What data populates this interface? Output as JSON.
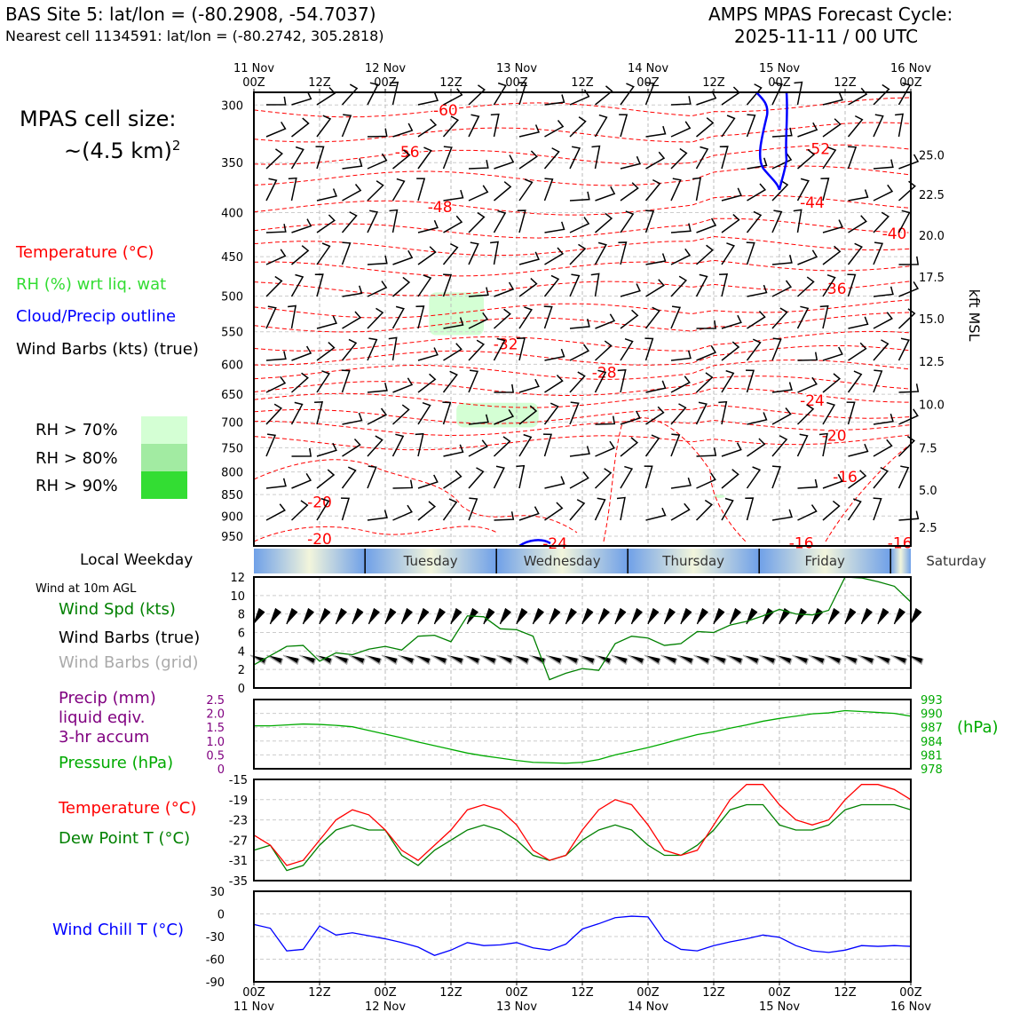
{
  "header": {
    "site_line": "BAS Site 5: lat/lon = (-80.2908, -54.7037)",
    "cell_line": "Nearest cell 1134591: lat/lon = (-80.2742, 305.2818)",
    "product_line": "AMPS MPAS Forecast Cycle:",
    "cycle_line": "2025-11-11 / 00 UTC"
  },
  "cell_size": {
    "label": "MPAS cell size:",
    "value": "~(4.5 km)",
    "exponent": "2"
  },
  "legend": {
    "temperature": "Temperature (°C)",
    "rh": "RH (%) wrt liq. wat",
    "cloud": "Cloud/Precip outline",
    "wind_barbs": "Wind Barbs (kts) (true)",
    "rh70": "RH > 70%",
    "rh80": "RH > 80%",
    "rh90": "RH > 90%"
  },
  "colors": {
    "temperature": "#ff0000",
    "dewpoint": "#008000",
    "rh": "#33dd33",
    "cloud": "#0000ff",
    "precip": "#800080",
    "pressure": "#00aa00",
    "windchill": "#0000ff",
    "barbs_grid": "#aaaaaa",
    "rh70": "#d4ffd4",
    "rh80": "#a2eba2",
    "rh90": "#33dd33"
  },
  "weekday": {
    "label": "Local Weekday",
    "days": [
      "Tuesday",
      "Wednesday",
      "Thursday",
      "Friday",
      "Saturday"
    ]
  },
  "surface_legend": {
    "wind_title": "Wind at 10m AGL",
    "wind_speed": "Wind Spd (kts)",
    "wind_barbs": "Wind Barbs (true)",
    "wind_barbs_grid": "Wind Barbs (grid)",
    "precip1": "Precip (mm)",
    "precip2": "liquid eqiv.",
    "precip3": "3-hr accum",
    "pressure": "Pressure (hPa)",
    "temperature": "Temperature (°C)",
    "dewpoint": "Dew Point T (°C)",
    "windchill": "Wind Chill T (°C)",
    "hpa_unit": "(hPa)"
  },
  "time_axis": {
    "top_labels": [
      [
        "11 Nov",
        "00Z"
      ],
      [
        "",
        "12Z"
      ],
      [
        "12 Nov",
        "00Z"
      ],
      [
        "",
        "12Z"
      ],
      [
        "13 Nov",
        "00Z"
      ],
      [
        "",
        "12Z"
      ],
      [
        "14 Nov",
        "00Z"
      ],
      [
        "",
        "12Z"
      ],
      [
        "15 Nov",
        "00Z"
      ],
      [
        "",
        "12Z"
      ],
      [
        "16 Nov",
        "00Z"
      ]
    ],
    "bottom_labels": [
      [
        "00Z",
        "11 Nov"
      ],
      [
        "12Z",
        ""
      ],
      [
        "00Z",
        "12 Nov"
      ],
      [
        "12Z",
        ""
      ],
      [
        "00Z",
        "13 Nov"
      ],
      [
        "12Z",
        ""
      ],
      [
        "00Z",
        "14 Nov"
      ],
      [
        "12Z",
        ""
      ],
      [
        "00Z",
        "15 Nov"
      ],
      [
        "12Z",
        ""
      ],
      [
        "00Z",
        "16 Nov"
      ]
    ]
  },
  "chart_data": [
    {
      "type": "heatmap",
      "id": "cross_section",
      "x_unit": "forecast hour from 2025-11-11 00Z",
      "xlim": [
        0,
        120
      ],
      "ylim": [
        975,
        290
      ],
      "ylabel_right": "kft MSL",
      "pressure_ticks": [
        300,
        350,
        400,
        450,
        500,
        550,
        600,
        650,
        700,
        750,
        800,
        850,
        900,
        950
      ],
      "height_ticks": [
        {
          "p": 343,
          "label": "25.0"
        },
        {
          "p": 381,
          "label": "22.5"
        },
        {
          "p": 425,
          "label": "20.0"
        },
        {
          "p": 475,
          "label": "17.5"
        },
        {
          "p": 531,
          "label": "15.0"
        },
        {
          "p": 595,
          "label": "12.5"
        },
        {
          "p": 668,
          "label": "10.0"
        },
        {
          "p": 750,
          "label": "7.5"
        },
        {
          "p": 840,
          "label": "5.0"
        },
        {
          "p": 928,
          "label": "2.5"
        }
      ],
      "temperature_contour_labels": [
        {
          "label": "-60",
          "x": 35,
          "p": 304
        },
        {
          "label": "-56",
          "x": 28,
          "p": 340
        },
        {
          "label": "-52",
          "x": 103,
          "p": 337
        },
        {
          "label": "-48",
          "x": 34,
          "p": 394
        },
        {
          "label": "-44",
          "x": 102,
          "p": 389
        },
        {
          "label": "-40",
          "x": 117,
          "p": 423
        },
        {
          "label": "-36",
          "x": 106,
          "p": 490
        },
        {
          "label": "-32",
          "x": 46,
          "p": 568
        },
        {
          "label": "-28",
          "x": 64,
          "p": 613
        },
        {
          "label": "-24",
          "x": 102,
          "p": 661
        },
        {
          "label": "-20",
          "x": 106,
          "p": 726
        },
        {
          "label": "-20",
          "x": 12,
          "p": 867
        },
        {
          "label": "-20",
          "x": 12,
          "p": 957
        },
        {
          "label": "-24",
          "x": 55,
          "p": 968
        },
        {
          "label": "-16",
          "x": 108,
          "p": 810
        },
        {
          "label": "-16",
          "x": 100,
          "p": 967
        },
        {
          "label": "-16",
          "x": 118,
          "p": 967
        }
      ],
      "rh_gt70_regions": [
        {
          "x": [
            32,
            42
          ],
          "p": [
            495,
            555
          ]
        },
        {
          "x": [
            37,
            52
          ],
          "p": [
            665,
            710
          ]
        },
        {
          "x": [
            84,
            86
          ],
          "p": [
            850,
            858
          ]
        }
      ]
    },
    {
      "type": "line",
      "id": "wind_speed_10m",
      "x": [
        0,
        3,
        6,
        9,
        12,
        15,
        18,
        21,
        24,
        27,
        30,
        33,
        36,
        39,
        42,
        45,
        48,
        51,
        54,
        57,
        60,
        63,
        66,
        69,
        72,
        75,
        78,
        81,
        84,
        87,
        90,
        93,
        96,
        99,
        102,
        105,
        108,
        111,
        114,
        117,
        120
      ],
      "series": [
        {
          "values": [
            2.5,
            3.5,
            4.5,
            4.6,
            2.9,
            3.8,
            3.6,
            4.2,
            4.5,
            4.1,
            5.6,
            5.7,
            5.0,
            7.8,
            7.7,
            6.4,
            6.3,
            5.6,
            0.9,
            1.6,
            2.1,
            1.9,
            4.8,
            5.6,
            5.4,
            4.6,
            4.8,
            6.1,
            6.0,
            6.8,
            7.2,
            7.8,
            8.5,
            8.0,
            7.9,
            8.4,
            12.0,
            11.9,
            11.5,
            11.0,
            9.3
          ]
        }
      ],
      "ylabel": "Wind Spd (kts)",
      "ylim": [
        0,
        12
      ],
      "yticks": [
        0,
        2,
        4,
        6,
        8,
        10,
        12
      ]
    },
    {
      "type": "line",
      "id": "pressure_precip",
      "x": [
        0,
        3,
        6,
        9,
        12,
        15,
        18,
        21,
        24,
        27,
        30,
        33,
        36,
        39,
        42,
        45,
        48,
        51,
        54,
        57,
        60,
        63,
        66,
        69,
        72,
        75,
        78,
        81,
        84,
        87,
        90,
        93,
        96,
        99,
        102,
        105,
        108,
        111,
        114,
        117,
        120
      ],
      "series": [
        {
          "name": "Pressure (hPa)",
          "values": [
            987.3,
            987.3,
            987.5,
            987.7,
            987.6,
            987.4,
            987.1,
            986.3,
            985.5,
            984.7,
            983.8,
            983.0,
            982.2,
            981.4,
            980.8,
            980.3,
            979.8,
            979.4,
            979.3,
            979.2,
            979.4,
            980.0,
            981.0,
            981.8,
            982.6,
            983.5,
            984.5,
            985.4,
            986.0,
            986.8,
            987.5,
            988.3,
            988.9,
            989.4,
            989.9,
            990.1,
            990.6,
            990.4,
            990.2,
            990.0,
            989.4
          ]
        }
      ],
      "precip_mm": [
        0,
        0,
        0,
        0,
        0,
        0,
        0,
        0,
        0,
        0,
        0,
        0,
        0,
        0,
        0,
        0,
        0,
        0,
        0,
        0,
        0,
        0,
        0,
        0,
        0,
        0,
        0,
        0,
        0,
        0,
        0,
        0,
        0,
        0,
        0,
        0,
        0,
        0,
        0,
        0,
        0
      ],
      "ylim_precip": [
        0,
        2.5
      ],
      "yticks_precip": [
        "0",
        "0.5",
        "1.0",
        "1.5",
        "2.0",
        "2.5"
      ],
      "ylim_pressure": [
        978,
        993
      ],
      "yticks_pressure": [
        978,
        981,
        984,
        987,
        990,
        993
      ]
    },
    {
      "type": "line",
      "id": "temperature_dewpoint",
      "x": [
        0,
        3,
        6,
        9,
        12,
        15,
        18,
        21,
        24,
        27,
        30,
        33,
        36,
        39,
        42,
        45,
        48,
        51,
        54,
        57,
        60,
        63,
        66,
        69,
        72,
        75,
        78,
        81,
        84,
        87,
        90,
        93,
        96,
        99,
        102,
        105,
        108,
        111,
        114,
        117,
        120
      ],
      "series": [
        {
          "name": "Temperature (°C)",
          "values": [
            -26,
            -28,
            -32,
            -31,
            -27,
            -23,
            -21,
            -22,
            -25,
            -29,
            -31,
            -28,
            -25,
            -21,
            -20,
            -21,
            -24,
            -29,
            -31,
            -30,
            -25,
            -21,
            -19,
            -20,
            -24,
            -29,
            -30,
            -29,
            -24,
            -19,
            -16,
            -16,
            -20,
            -23,
            -24,
            -23,
            -19,
            -16,
            -16,
            -17,
            -19
          ]
        },
        {
          "name": "Dew Point T (°C)",
          "values": [
            -29,
            -28,
            -33,
            -32,
            -28,
            -25,
            -24,
            -25,
            -25,
            -30,
            -32,
            -29,
            -27,
            -25,
            -24,
            -25,
            -27,
            -30,
            -31,
            -30,
            -27,
            -25,
            -24,
            -25,
            -28,
            -30,
            -30,
            -28,
            -25,
            -21,
            -20,
            -20,
            -24,
            -25,
            -25,
            -24,
            -21,
            -20,
            -20,
            -20,
            -21
          ]
        }
      ],
      "ylim": [
        -35,
        -15
      ],
      "yticks": [
        -35,
        -31,
        -27,
        -23,
        -19,
        -15
      ]
    },
    {
      "type": "line",
      "id": "wind_chill",
      "x": [
        0,
        3,
        6,
        9,
        12,
        15,
        18,
        21,
        24,
        27,
        30,
        33,
        36,
        39,
        42,
        45,
        48,
        51,
        54,
        57,
        60,
        63,
        66,
        69,
        72,
        75,
        78,
        81,
        84,
        87,
        90,
        93,
        96,
        99,
        102,
        105,
        108,
        111,
        114,
        117,
        120
      ],
      "series": [
        {
          "name": "Wind Chill T (°C)",
          "values": [
            -14,
            -19,
            -49,
            -47,
            -16,
            -28,
            -25,
            -29,
            -33,
            -38,
            -44,
            -55,
            -48,
            -38,
            -42,
            -41,
            -38,
            -45,
            -48,
            -40,
            -20,
            -13,
            -5,
            -3,
            -4,
            -35,
            -47,
            -49,
            -42,
            -37,
            -33,
            -28,
            -31,
            -42,
            -49,
            -51,
            -48,
            -42,
            -43,
            -42,
            -43
          ]
        }
      ],
      "ylabel": "Wind Chill T (°C)",
      "ylim": [
        -90,
        30
      ],
      "yticks": [
        -90,
        -60,
        -30,
        0,
        30
      ]
    }
  ]
}
